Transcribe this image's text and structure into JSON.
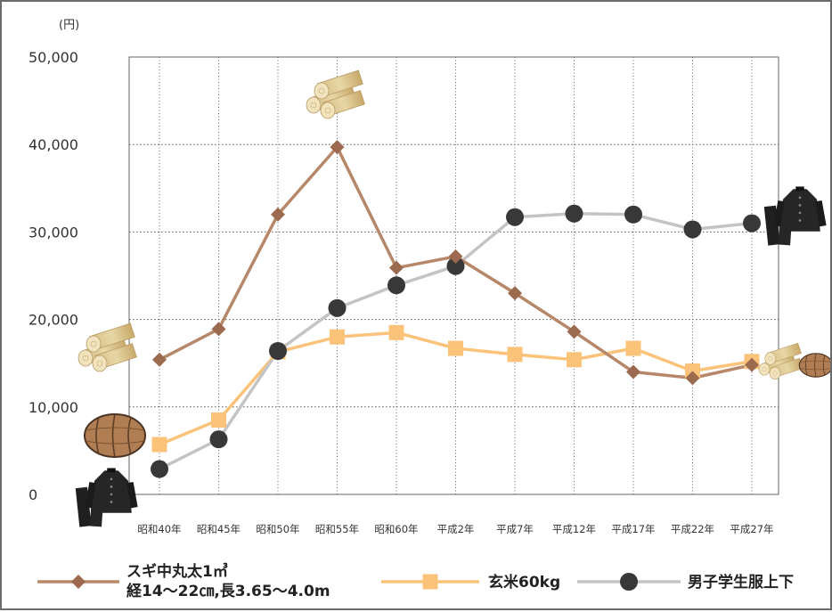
{
  "chart_data": {
    "type": "line",
    "ylabel": "(円)",
    "ylim": [
      0,
      50000
    ],
    "y_ticks": [
      {
        "value": 0,
        "label": "0"
      },
      {
        "value": 10000,
        "label": "10,000"
      },
      {
        "value": 20000,
        "label": "20,000"
      },
      {
        "value": 30000,
        "label": "30,000"
      },
      {
        "value": 40000,
        "label": "40,000"
      },
      {
        "value": 50000,
        "label": "50,000"
      }
    ],
    "categories": [
      "昭和40年",
      "昭和45年",
      "昭和50年",
      "昭和55年",
      "昭和60年",
      "平成2年",
      "平成7年",
      "平成12年",
      "平成17年",
      "平成22年",
      "平成27年"
    ],
    "grid": true,
    "legend_position": "bottom",
    "series": [
      {
        "name": "スギ中丸太1㎥",
        "name_line2": "経14～22㎝,長3.65～4.0m",
        "color": "#b7876a",
        "marker": "diamond",
        "values": [
          15400,
          18900,
          32000,
          39700,
          25900,
          27200,
          23000,
          18600,
          14000,
          13300,
          14800
        ]
      },
      {
        "name": "玄米60kg",
        "color": "#fbc37a",
        "marker": "square",
        "values": [
          5700,
          8500,
          16300,
          18000,
          18500,
          16700,
          16000,
          15400,
          16700,
          14100,
          15200
        ]
      },
      {
        "name": "男子学生服上下",
        "color": "#c4c4c4",
        "marker": "circle",
        "marker_color": "#383838",
        "values": [
          2900,
          6300,
          16400,
          21300,
          23900,
          26100,
          31700,
          32100,
          32000,
          30300,
          31000
        ]
      }
    ]
  },
  "icons": [
    "log-pile-icon",
    "rice-bale-icon",
    "school-uniform-icon"
  ]
}
